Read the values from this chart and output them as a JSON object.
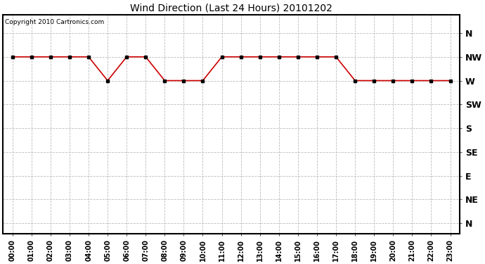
{
  "title": "Wind Direction (Last 24 Hours) 20101202",
  "copyright_text": "Copyright 2010 Cartronics.com",
  "background_color": "#ffffff",
  "plot_bg_color": "#ffffff",
  "line_color": "#cc0000",
  "marker": "s",
  "marker_size": 3,
  "marker_color": "#000000",
  "grid_color": "#bbbbbb",
  "grid_style": "--",
  "hours": [
    0,
    1,
    2,
    3,
    4,
    5,
    6,
    7,
    8,
    9,
    10,
    11,
    12,
    13,
    14,
    15,
    16,
    17,
    18,
    19,
    20,
    21,
    22,
    23
  ],
  "wind_values": [
    315,
    315,
    315,
    315,
    315,
    270,
    315,
    315,
    270,
    270,
    270,
    315,
    315,
    315,
    315,
    315,
    315,
    315,
    270,
    270,
    270,
    270,
    270,
    270
  ],
  "ytick_positions": [
    360,
    315,
    270,
    225,
    180,
    135,
    90,
    45,
    0
  ],
  "ytick_labels": [
    "N",
    "NW",
    "W",
    "SW",
    "S",
    "SE",
    "E",
    "NE",
    "N"
  ],
  "ylim": [
    -20,
    395
  ],
  "xlim": [
    -0.5,
    23.5
  ],
  "xtick_labels": [
    "00:00",
    "01:00",
    "02:00",
    "03:00",
    "04:00",
    "05:00",
    "06:00",
    "07:00",
    "08:00",
    "09:00",
    "10:00",
    "11:00",
    "12:00",
    "13:00",
    "14:00",
    "15:00",
    "16:00",
    "17:00",
    "18:00",
    "19:00",
    "20:00",
    "21:00",
    "22:00",
    "23:00"
  ]
}
